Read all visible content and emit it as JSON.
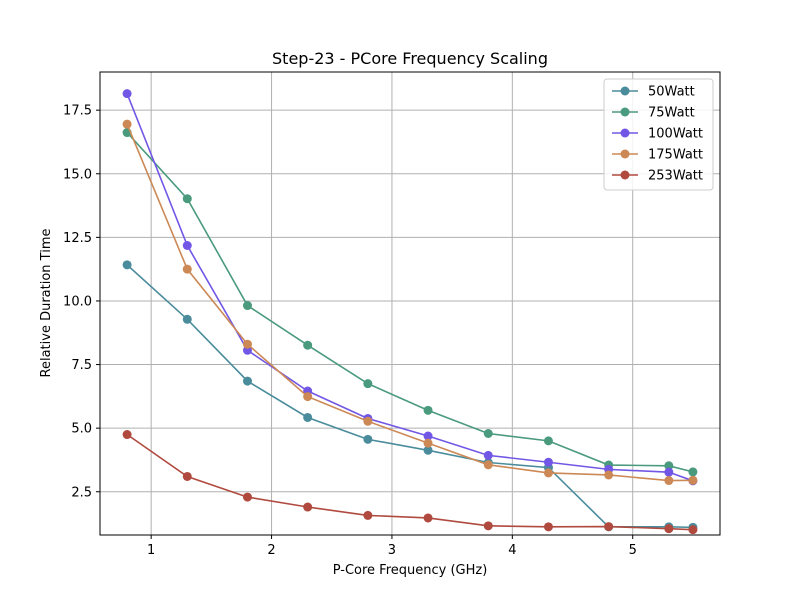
{
  "chart_data": {
    "type": "line",
    "title": "Step-23 - PCore Frequency Scaling",
    "xlabel": "P-Core Frequency (GHz)",
    "ylabel": "Relative Duration Time",
    "xlim": [
      0.575,
      5.725
    ],
    "ylim": [
      0.8,
      19.0
    ],
    "xticks": [
      1,
      2,
      3,
      4,
      5
    ],
    "yticks": [
      2.5,
      5.0,
      7.5,
      10.0,
      12.5,
      15.0,
      17.5
    ],
    "ytick_labels": [
      "2.5",
      "5.0",
      "7.5",
      "10.0",
      "12.5",
      "15.0",
      "17.5"
    ],
    "grid": true,
    "legend_position": "top-right",
    "x": [
      0.8,
      1.3,
      1.8,
      2.3,
      2.8,
      3.3,
      3.8,
      4.3,
      4.8,
      5.3,
      5.5
    ],
    "series": [
      {
        "name": "50Watt",
        "color": "#4a8c9c",
        "values": [
          11.42,
          9.28,
          6.85,
          5.42,
          4.56,
          4.13,
          3.65,
          3.45,
          1.12,
          1.12,
          1.1
        ]
      },
      {
        "name": "75Watt",
        "color": "#4a9a7e",
        "values": [
          16.62,
          14.02,
          9.82,
          8.26,
          6.75,
          5.7,
          4.79,
          4.5,
          3.55,
          3.52,
          3.28
        ]
      },
      {
        "name": "100Watt",
        "color": "#7257e6",
        "values": [
          18.15,
          12.18,
          8.06,
          6.46,
          5.38,
          4.69,
          3.93,
          3.66,
          3.38,
          3.27,
          2.93
        ]
      },
      {
        "name": "175Watt",
        "color": "#cc8855",
        "values": [
          16.95,
          11.25,
          8.3,
          6.24,
          5.27,
          4.41,
          3.56,
          3.24,
          3.16,
          2.94,
          2.95
        ]
      },
      {
        "name": "253Watt",
        "color": "#b04a3f",
        "values": [
          4.75,
          3.1,
          2.29,
          1.9,
          1.57,
          1.47,
          1.16,
          1.12,
          1.13,
          1.05,
          1.01
        ]
      }
    ]
  }
}
